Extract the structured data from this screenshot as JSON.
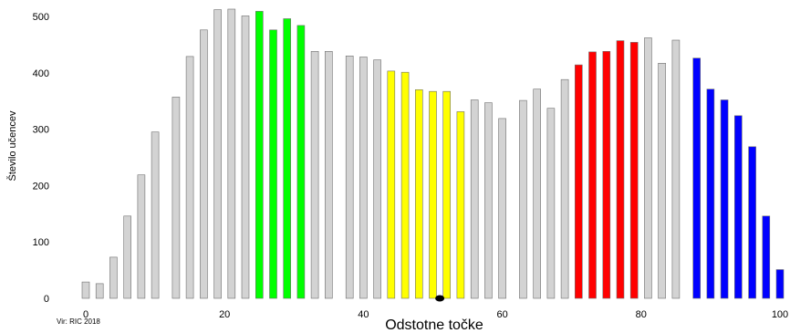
{
  "chart_data": {
    "type": "bar",
    "title": "",
    "xlabel": "Odstotne točke",
    "ylabel": "Število učencev",
    "source": "Vir: RIC 2018",
    "xlim": [
      0,
      100
    ],
    "ylim": [
      0,
      500
    ],
    "xticks": [
      0,
      20,
      40,
      60,
      80,
      100
    ],
    "yticks": [
      0,
      100,
      200,
      300,
      400,
      500
    ],
    "grid": false,
    "legend": "none",
    "colors": {
      "gray": "#d3d3d3",
      "green": "#00ff00",
      "yellow": "#ffff00",
      "red": "#ff0000",
      "blue": "#0000ff",
      "marker": "#000000"
    },
    "marker": {
      "x": 51,
      "y": 0
    },
    "bars": [
      {
        "x": 0,
        "value": 29,
        "group": "gray"
      },
      {
        "x": 2,
        "value": 26,
        "group": "gray"
      },
      {
        "x": 4,
        "value": 73,
        "group": "gray"
      },
      {
        "x": 6,
        "value": 146,
        "group": "gray"
      },
      {
        "x": 8,
        "value": 219,
        "group": "gray"
      },
      {
        "x": 10,
        "value": 295,
        "group": "gray"
      },
      {
        "x": 13,
        "value": 357,
        "group": "gray"
      },
      {
        "x": 15,
        "value": 429,
        "group": "gray"
      },
      {
        "x": 17,
        "value": 476,
        "group": "gray"
      },
      {
        "x": 19,
        "value": 512,
        "group": "gray"
      },
      {
        "x": 21,
        "value": 513,
        "group": "gray"
      },
      {
        "x": 23,
        "value": 501,
        "group": "gray"
      },
      {
        "x": 25,
        "value": 509,
        "group": "green"
      },
      {
        "x": 27,
        "value": 476,
        "group": "green"
      },
      {
        "x": 29,
        "value": 496,
        "group": "green"
      },
      {
        "x": 31,
        "value": 484,
        "group": "green"
      },
      {
        "x": 33,
        "value": 438,
        "group": "gray"
      },
      {
        "x": 35,
        "value": 438,
        "group": "gray"
      },
      {
        "x": 38,
        "value": 430,
        "group": "gray"
      },
      {
        "x": 40,
        "value": 428,
        "group": "gray"
      },
      {
        "x": 42,
        "value": 423,
        "group": "gray"
      },
      {
        "x": 44,
        "value": 403,
        "group": "yellow"
      },
      {
        "x": 46,
        "value": 401,
        "group": "yellow"
      },
      {
        "x": 48,
        "value": 370,
        "group": "yellow"
      },
      {
        "x": 50,
        "value": 367,
        "group": "yellow"
      },
      {
        "x": 52,
        "value": 367,
        "group": "yellow"
      },
      {
        "x": 54,
        "value": 331,
        "group": "yellow"
      },
      {
        "x": 56,
        "value": 352,
        "group": "gray"
      },
      {
        "x": 58,
        "value": 347,
        "group": "gray"
      },
      {
        "x": 60,
        "value": 319,
        "group": "gray"
      },
      {
        "x": 63,
        "value": 351,
        "group": "gray"
      },
      {
        "x": 65,
        "value": 371,
        "group": "gray"
      },
      {
        "x": 67,
        "value": 337,
        "group": "gray"
      },
      {
        "x": 69,
        "value": 388,
        "group": "gray"
      },
      {
        "x": 71,
        "value": 414,
        "group": "red"
      },
      {
        "x": 73,
        "value": 437,
        "group": "red"
      },
      {
        "x": 75,
        "value": 438,
        "group": "red"
      },
      {
        "x": 77,
        "value": 457,
        "group": "red"
      },
      {
        "x": 79,
        "value": 454,
        "group": "red"
      },
      {
        "x": 81,
        "value": 462,
        "group": "gray"
      },
      {
        "x": 83,
        "value": 417,
        "group": "gray"
      },
      {
        "x": 85,
        "value": 458,
        "group": "gray"
      },
      {
        "x": 88,
        "value": 426,
        "group": "blue"
      },
      {
        "x": 90,
        "value": 371,
        "group": "blue"
      },
      {
        "x": 92,
        "value": 352,
        "group": "blue"
      },
      {
        "x": 94,
        "value": 324,
        "group": "blue"
      },
      {
        "x": 96,
        "value": 269,
        "group": "blue"
      },
      {
        "x": 98,
        "value": 146,
        "group": "blue"
      },
      {
        "x": 100,
        "value": 51,
        "group": "blue"
      }
    ]
  }
}
